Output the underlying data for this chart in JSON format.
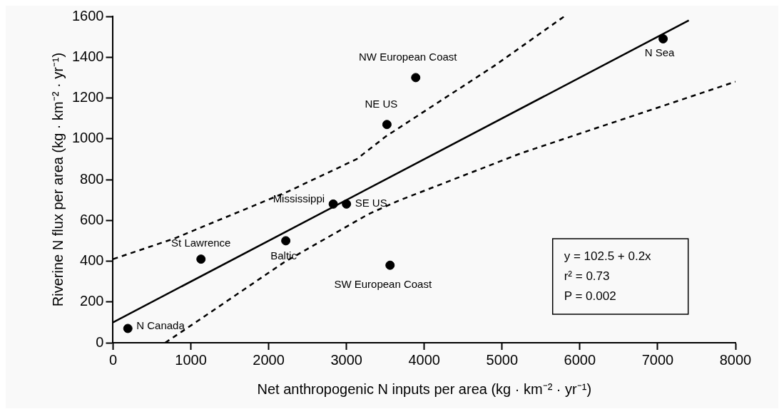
{
  "chart_data": {
    "type": "scatter",
    "xlabel": "Net anthropogenic N inputs per area (kg · km⁻² · yr⁻¹)",
    "ylabel": "Riverine N flux per area (kg · km⁻² · yr⁻¹)",
    "series": [
      {
        "color": "#000000",
        "marker": "circle",
        "x": [
          190,
          1130,
          2220,
          2830,
          3000,
          3520,
          3560,
          3890,
          7070
        ],
        "values": [
          70,
          410,
          500,
          680,
          680,
          1070,
          380,
          1300,
          1490
        ]
      },
      {
        "type": "line",
        "color": "#000000",
        "line_style": "solid",
        "marker": "none",
        "x": [
          0,
          7400
        ],
        "values": [
          100,
          1580
        ]
      },
      {
        "type": "line",
        "color": "#000000",
        "line_style": "dashed",
        "marker": "none",
        "x": [
          0,
          780,
          2240,
          3130,
          3500,
          4890,
          5800
        ],
        "values": [
          410,
          510,
          740,
          900,
          1010,
          1355,
          1600
        ]
      },
      {
        "type": "line",
        "color": "#000000",
        "line_style": "dashed",
        "marker": "none",
        "x": [
          670,
          1100,
          2200,
          3280,
          3660,
          5250,
          8000
        ],
        "values": [
          0,
          110,
          395,
          630,
          695,
          930,
          1280
        ]
      }
    ],
    "annotations": [
      {
        "text": "N Canada",
        "x": 190,
        "y": 70
      },
      {
        "text": "St Lawrence",
        "x": 1130,
        "y": 410
      },
      {
        "text": "Baltic",
        "x": 2220,
        "y": 500
      },
      {
        "text": "Mississippi",
        "x": 2830,
        "y": 680
      },
      {
        "text": "SE US",
        "x": 3000,
        "y": 680
      },
      {
        "text": "NE US",
        "x": 3520,
        "y": 1070
      },
      {
        "text": "SW European Coast",
        "x": 3560,
        "y": 380
      },
      {
        "text": "NW European Coast",
        "x": 3890,
        "y": 1300
      },
      {
        "text": "N Sea",
        "x": 7070,
        "y": 1490
      },
      "y = 102.5 + 0.2x",
      "r² = 0.73",
      "P = 0.002"
    ],
    "xlim": [
      0,
      8000
    ],
    "xticks": [
      0,
      1000,
      2000,
      3000,
      4000,
      5000,
      6000,
      7000,
      8000
    ],
    "ylim": [
      0,
      1600
    ],
    "yticks": [
      0,
      200,
      400,
      600,
      800,
      1000,
      1200,
      1400,
      1600
    ],
    "grid": false,
    "legend": false
  }
}
